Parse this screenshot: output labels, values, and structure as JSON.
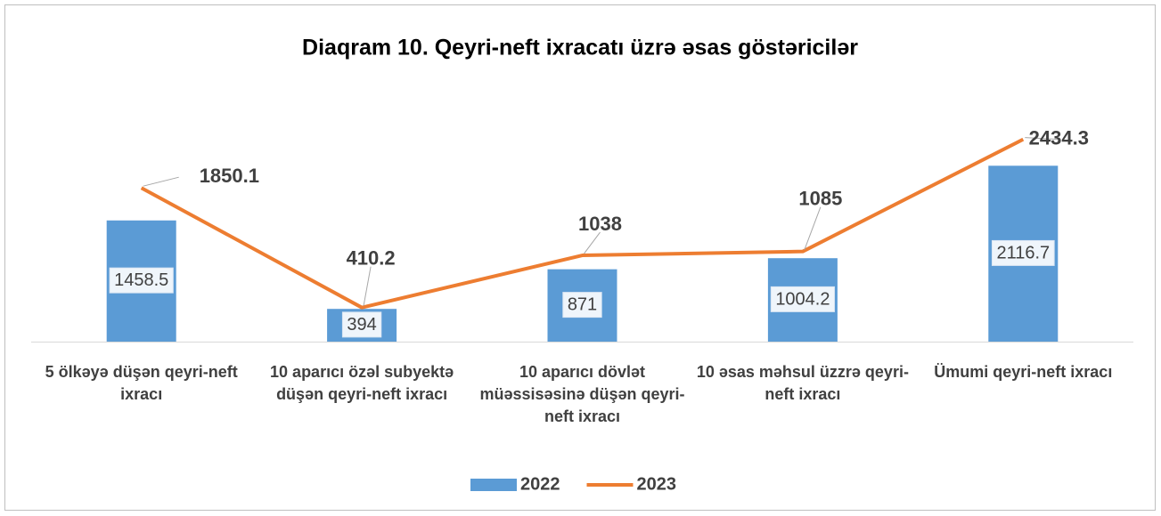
{
  "chart_data": {
    "type": "bar_line",
    "title": "Diaqram 10. Qeyri-neft ixracatı üzrə əsas göstəricilər",
    "categories": [
      "5 ölkəyə düşən qeyri-neft ixracı",
      "10 aparıcı özəl subyektə düşən qeyri-neft ixracı",
      "10 aparıcı dövlət müəssisəsinə düşən qeyri-neft ixracı",
      "10 əsas məhsul üzzrə qeyri-neft ixracı",
      "Ümumi qeyri-neft ixracı"
    ],
    "series": [
      {
        "name": "2022",
        "type": "bar",
        "color": "#5b9bd5",
        "values": [
          1458.5,
          394,
          871,
          1004.2,
          2116.7
        ]
      },
      {
        "name": "2023",
        "type": "line",
        "color": "#ed7d31",
        "values": [
          1850.1,
          410.2,
          1038,
          1085,
          2434.3
        ]
      }
    ],
    "ylim": [
      0,
      2500
    ],
    "legend": "bottom"
  }
}
